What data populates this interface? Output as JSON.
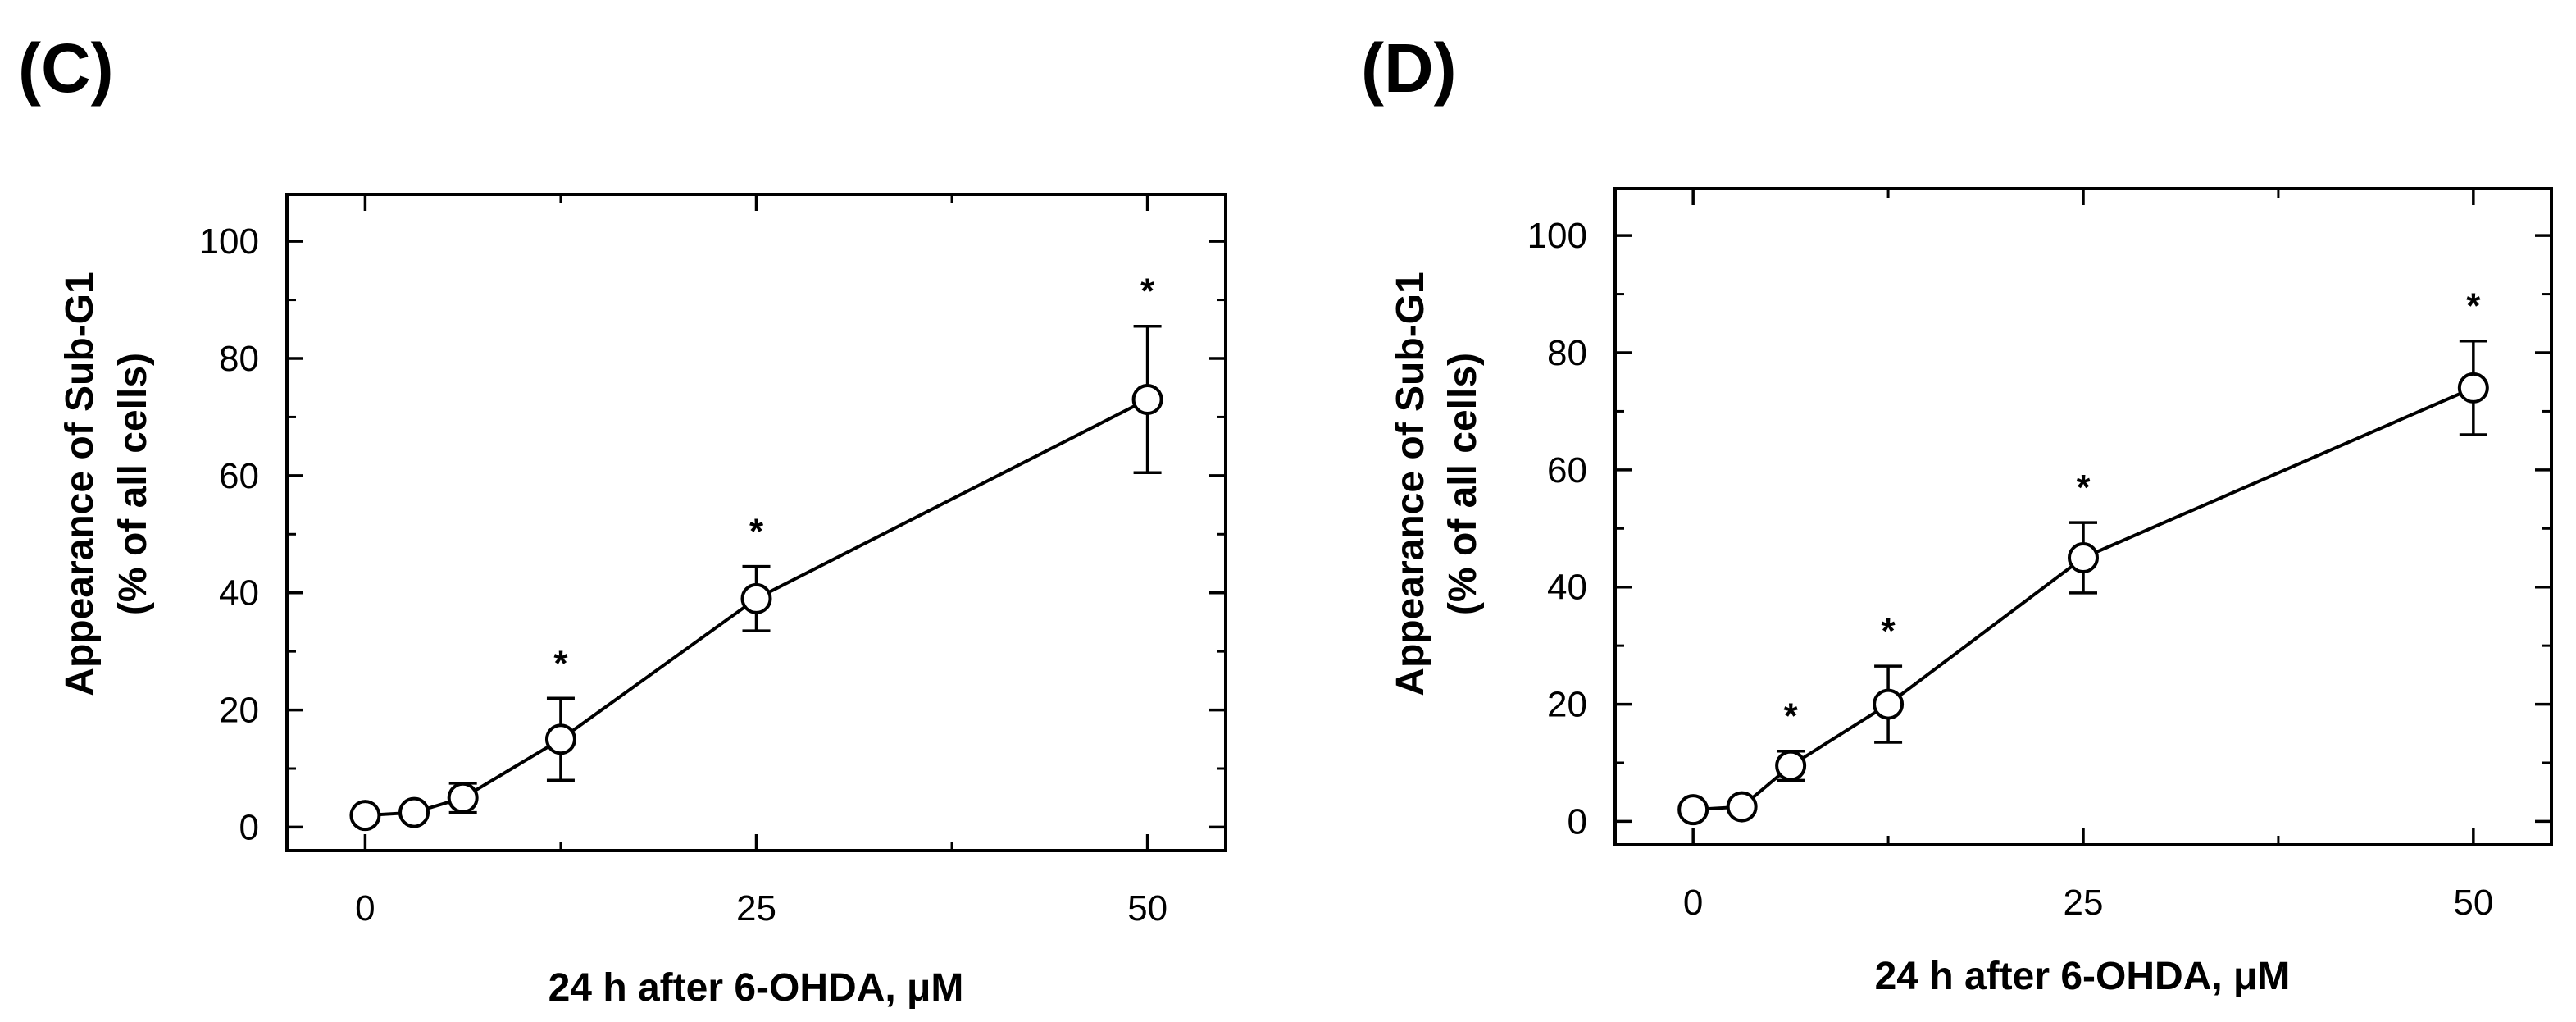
{
  "chart_data": [
    {
      "type": "line",
      "panel_label": "(C)",
      "xlabel": "24 h after 6-OHDA, μM",
      "ylabel_line1": "Appearance of Sub-G1",
      "ylabel_line2": "(% of all cells)",
      "xlim": [
        -5,
        55
      ],
      "ylim": [
        -4,
        108
      ],
      "x_ticks": [
        0,
        25,
        50
      ],
      "x_tick_labels": [
        "0",
        "25",
        "50"
      ],
      "x_minor_ticks": [
        12.5,
        37.5
      ],
      "y_ticks": [
        0,
        20,
        40,
        60,
        80,
        100
      ],
      "y_tick_labels": [
        "0",
        "20",
        "40",
        "60",
        "80",
        "100"
      ],
      "y_minor_ticks": [
        10,
        30,
        50,
        70,
        90
      ],
      "series": [
        {
          "name": "Sub-G1",
          "x": [
            0,
            3.125,
            6.25,
            12.5,
            25,
            50
          ],
          "y": [
            2,
            2.5,
            5,
            15,
            39,
            73
          ],
          "err": [
            0,
            0,
            2.5,
            7,
            5.5,
            12.5
          ],
          "significant": [
            false,
            false,
            false,
            true,
            true,
            true
          ],
          "sig_label": "*"
        }
      ]
    },
    {
      "type": "line",
      "panel_label": "(D)",
      "xlabel": "24 h after 6-OHDA, μM",
      "ylabel_line1": "Appearance of Sub-G1",
      "ylabel_line2": "(% of all cells)",
      "xlim": [
        -5,
        55
      ],
      "ylim": [
        -4,
        108
      ],
      "x_ticks": [
        0,
        25,
        50
      ],
      "x_tick_labels": [
        "0",
        "25",
        "50"
      ],
      "x_minor_ticks": [
        12.5,
        37.5
      ],
      "y_ticks": [
        0,
        20,
        40,
        60,
        80,
        100
      ],
      "y_tick_labels": [
        "0",
        "20",
        "40",
        "60",
        "80",
        "100"
      ],
      "y_minor_ticks": [
        10,
        30,
        50,
        70,
        90
      ],
      "series": [
        {
          "name": "Sub-G1",
          "x": [
            0,
            3.125,
            6.25,
            12.5,
            25,
            50
          ],
          "y": [
            2,
            2.5,
            9.5,
            20,
            45,
            74
          ],
          "err": [
            0,
            0,
            2.5,
            6.5,
            6,
            8
          ],
          "significant": [
            false,
            false,
            true,
            true,
            true,
            true
          ],
          "sig_label": "*"
        }
      ]
    }
  ]
}
